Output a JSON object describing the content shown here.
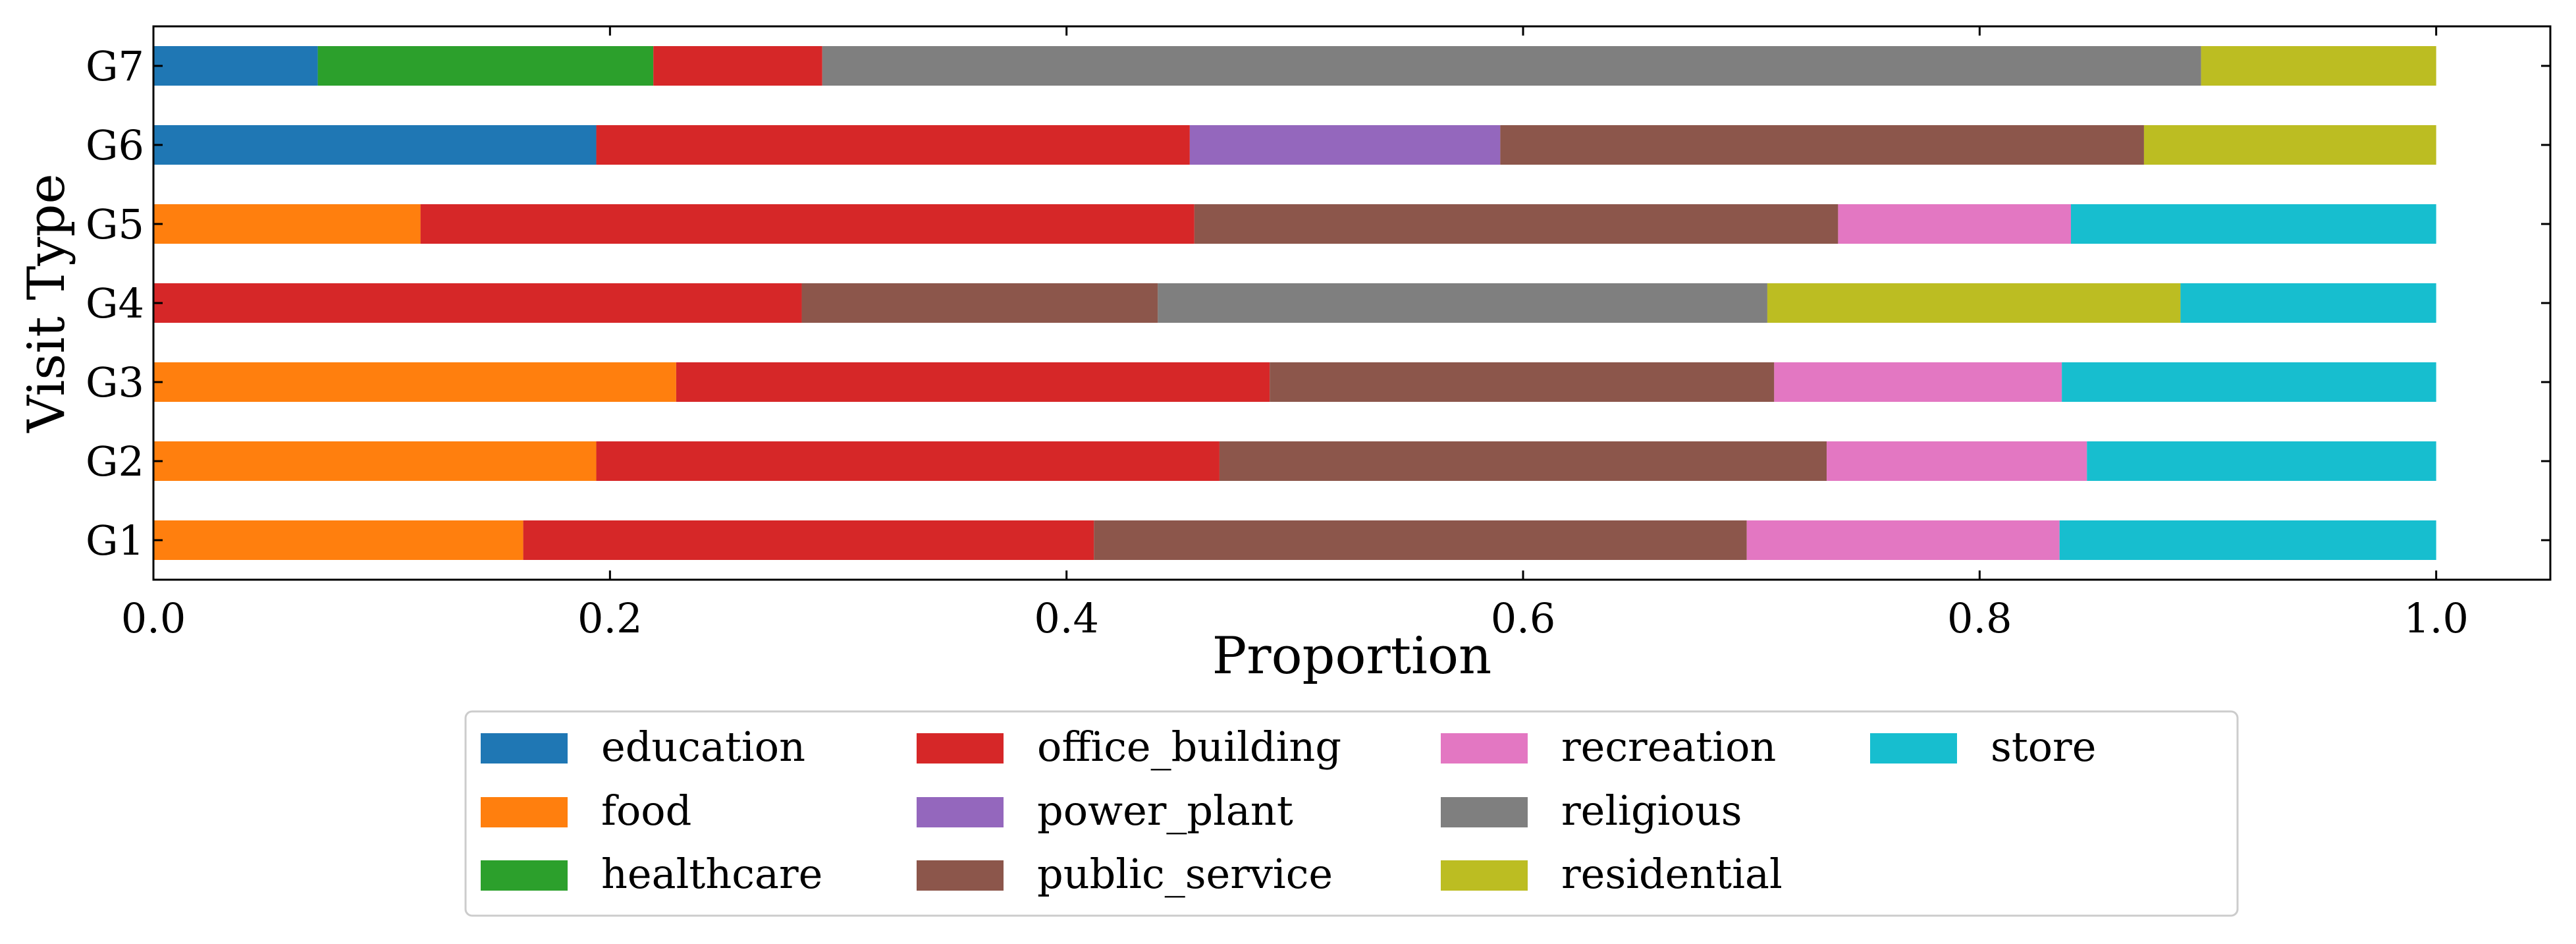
{
  "chart_data": {
    "type": "bar",
    "orientation": "horizontal",
    "stacked": true,
    "title": "",
    "xlabel": "Proportion",
    "ylabel": "Visit Type",
    "xlim": [
      0,
      1.05
    ],
    "xticks": [
      "0.0",
      "0.2",
      "0.4",
      "0.6",
      "0.8",
      "1.0"
    ],
    "xtick_values": [
      0.0,
      0.2,
      0.4,
      0.6,
      0.8,
      1.0
    ],
    "categories": [
      "G1",
      "G2",
      "G3",
      "G4",
      "G5",
      "G6",
      "G7"
    ],
    "legend_position": "bottom-center",
    "series": [
      {
        "name": "education",
        "color": "#1f77b4",
        "values": [
          0,
          0,
          0,
          0,
          0,
          0.194,
          0.072
        ]
      },
      {
        "name": "food",
        "color": "#ff7f0e",
        "values": [
          0.162,
          0.194,
          0.229,
          0,
          0.117,
          0,
          0
        ]
      },
      {
        "name": "healthcare",
        "color": "#2ca02c",
        "values": [
          0,
          0,
          0,
          0,
          0,
          0,
          0.147
        ]
      },
      {
        "name": "office_building",
        "color": "#d62728",
        "values": [
          0.25,
          0.273,
          0.26,
          0.284,
          0.339,
          0.26,
          0.074
        ]
      },
      {
        "name": "power_plant",
        "color": "#9467bd",
        "values": [
          0,
          0,
          0,
          0,
          0,
          0.136,
          0
        ]
      },
      {
        "name": "public_service",
        "color": "#8c564b",
        "values": [
          0.286,
          0.266,
          0.221,
          0.156,
          0.282,
          0.282,
          0
        ]
      },
      {
        "name": "recreation",
        "color": "#e377c2",
        "values": [
          0.137,
          0.114,
          0.126,
          0,
          0.102,
          0,
          0
        ]
      },
      {
        "name": "religious",
        "color": "#7f7f7f",
        "values": [
          0,
          0,
          0,
          0.267,
          0,
          0,
          0.604
        ]
      },
      {
        "name": "residential",
        "color": "#bcbd22",
        "values": [
          0,
          0,
          0,
          0.181,
          0,
          0.128,
          0.103
        ]
      },
      {
        "name": "store",
        "color": "#17becf",
        "values": [
          0.165,
          0.153,
          0.164,
          0.112,
          0.16,
          0,
          0
        ]
      }
    ]
  }
}
